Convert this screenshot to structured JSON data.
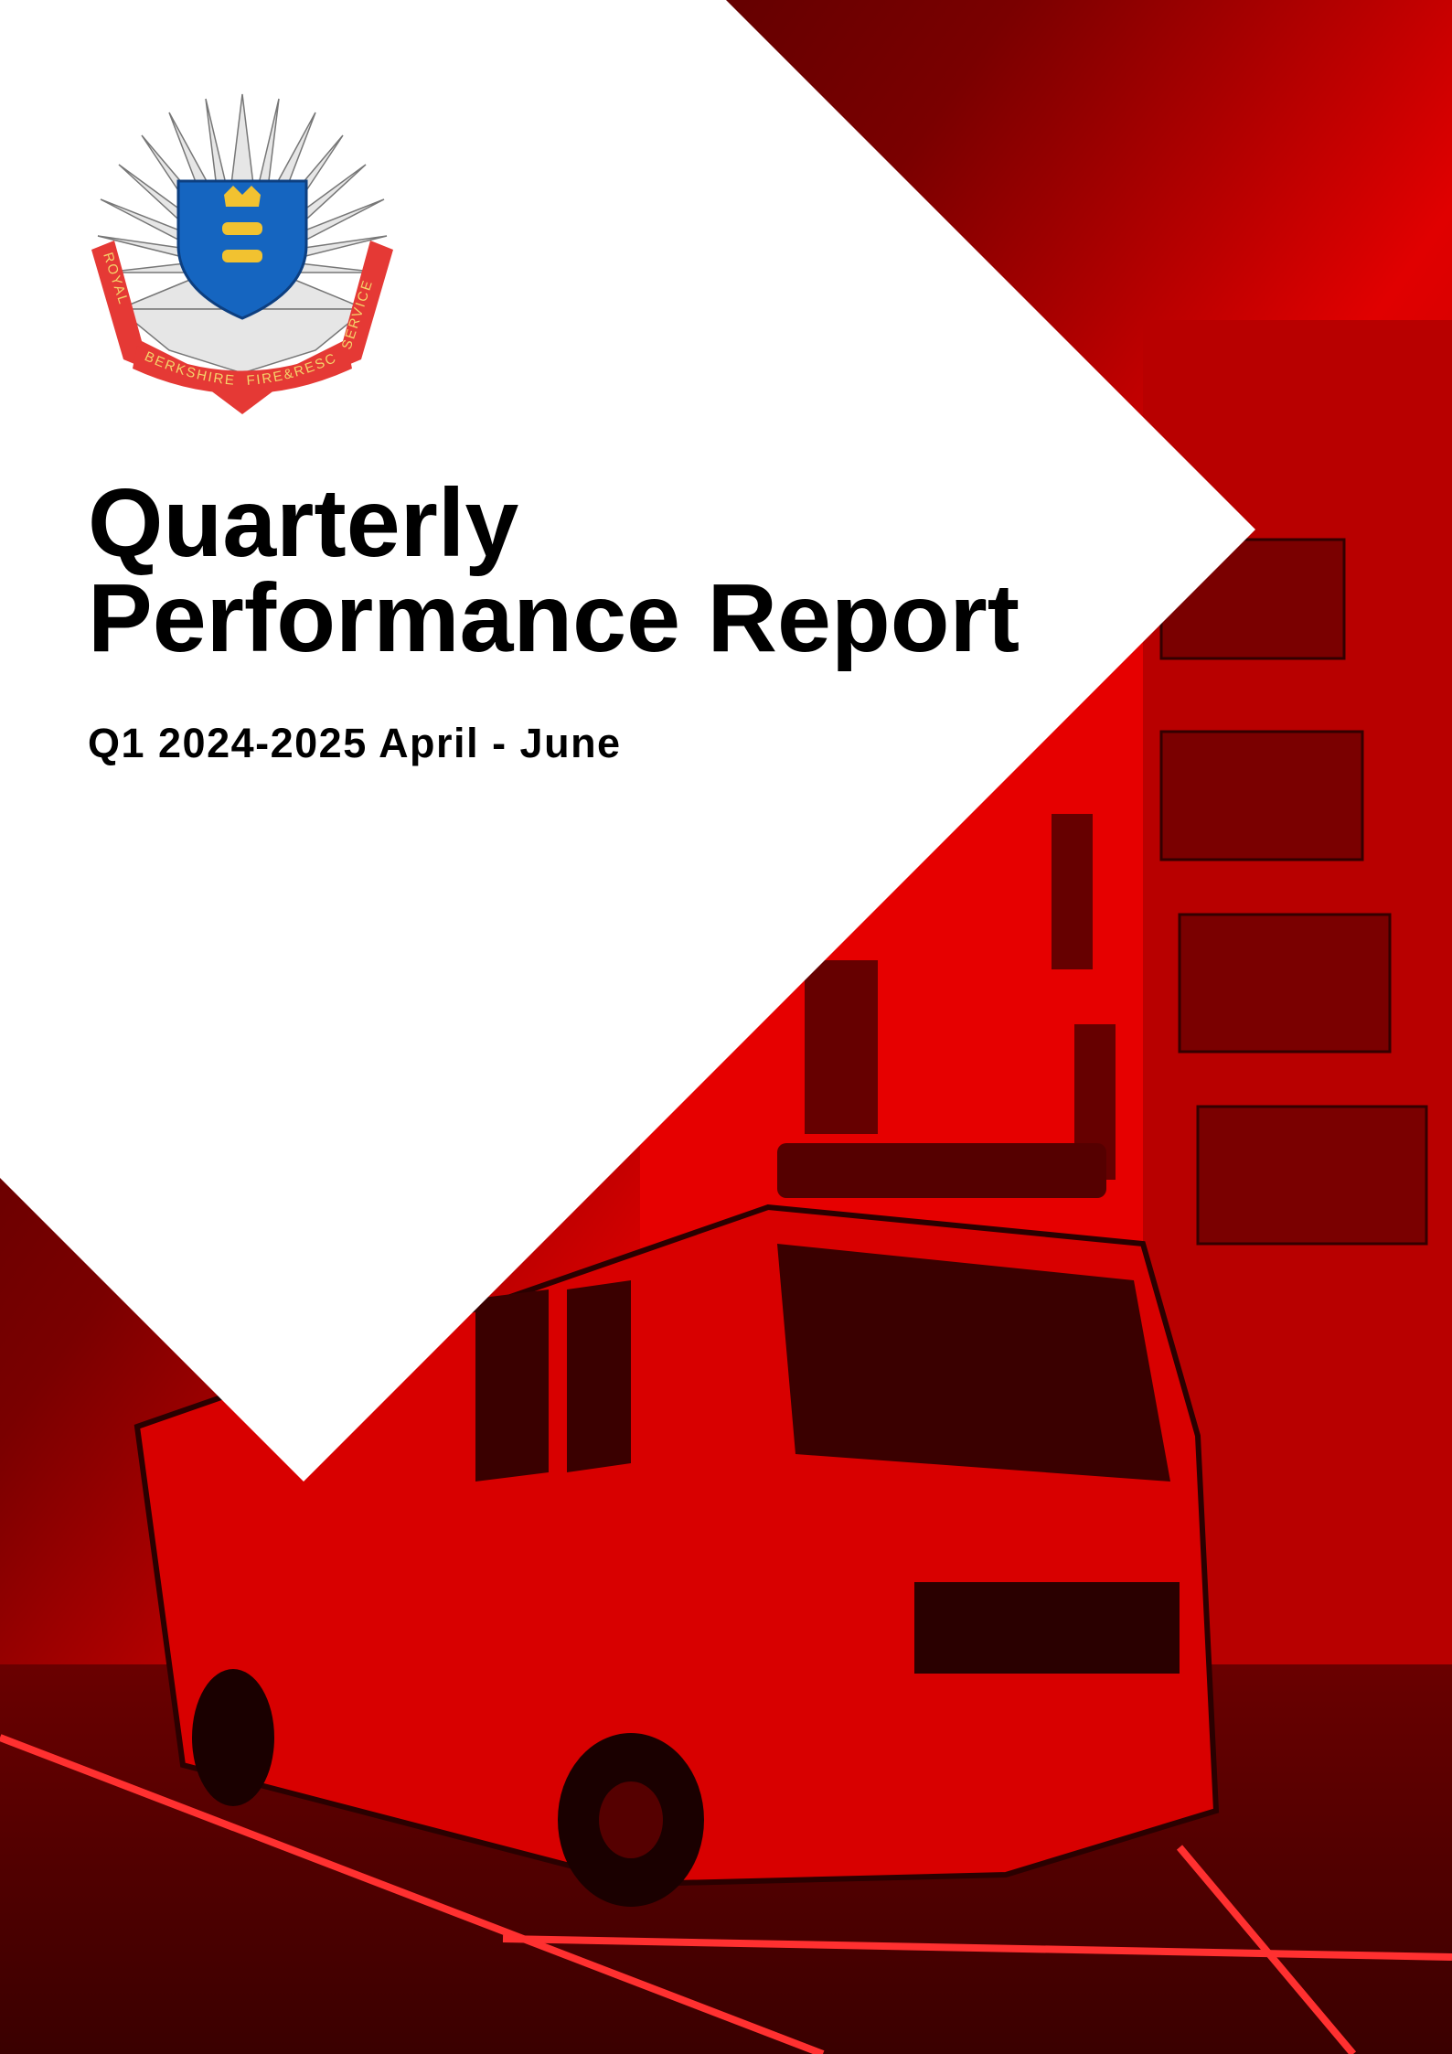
{
  "header": {
    "title_lines": [
      "Quarterly",
      "Performance Report"
    ],
    "subtitle": "Q1 2024-2025 April - June"
  },
  "logo": {
    "ribbon_left": "ROYAL",
    "ribbon_bottom_left": "BERKSHIRE",
    "ribbon_bottom_right": "FIRE&RESCUE",
    "ribbon_right": "SERVICE"
  }
}
